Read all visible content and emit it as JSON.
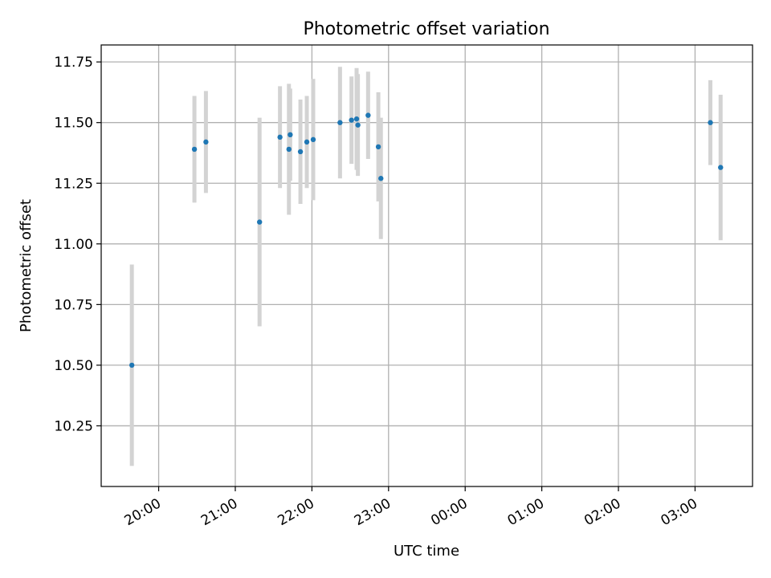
{
  "chart_data": {
    "type": "scatter",
    "title": "Photometric offset variation",
    "xlabel": "UTC time",
    "ylabel": "Photometric offset",
    "ylim": [
      10.0,
      11.82
    ],
    "xlim": [
      "19:15",
      "27:45"
    ],
    "x_ticks": [
      "20:00",
      "21:00",
      "22:00",
      "23:00",
      "00:00",
      "01:00",
      "02:00",
      "03:00"
    ],
    "y_ticks": [
      "10.25",
      "10.50",
      "10.75",
      "11.00",
      "11.25",
      "11.50",
      "11.75"
    ],
    "grid": true,
    "colors": {
      "point": "#1f77b4",
      "errorbar": "#d3d3d3",
      "grid": "#b0b0b0"
    },
    "points": [
      {
        "t": "19:39",
        "y": 10.5,
        "err": 0.415
      },
      {
        "t": "20:28",
        "y": 11.39,
        "err": 0.22
      },
      {
        "t": "20:37",
        "y": 11.42,
        "err": 0.21
      },
      {
        "t": "21:19",
        "y": 11.09,
        "err": 0.43
      },
      {
        "t": "21:35",
        "y": 11.44,
        "err": 0.21
      },
      {
        "t": "21:42",
        "y": 11.39,
        "err": 0.27
      },
      {
        "t": "21:43",
        "y": 11.45,
        "err": 0.19
      },
      {
        "t": "21:51",
        "y": 11.38,
        "err": 0.215
      },
      {
        "t": "21:56",
        "y": 11.42,
        "err": 0.19
      },
      {
        "t": "22:01",
        "y": 11.43,
        "err": 0.25
      },
      {
        "t": "22:22",
        "y": 11.5,
        "err": 0.23
      },
      {
        "t": "22:31",
        "y": 11.51,
        "err": 0.18
      },
      {
        "t": "22:35",
        "y": 11.515,
        "err": 0.21
      },
      {
        "t": "22:36",
        "y": 11.49,
        "err": 0.21
      },
      {
        "t": "22:44",
        "y": 11.53,
        "err": 0.18
      },
      {
        "t": "22:52",
        "y": 11.4,
        "err": 0.225
      },
      {
        "t": "22:54",
        "y": 11.27,
        "err": 0.25
      },
      {
        "t": "27:12",
        "y": 11.5,
        "err": 0.175
      },
      {
        "t": "27:20",
        "y": 11.315,
        "err": 0.3
      }
    ]
  }
}
